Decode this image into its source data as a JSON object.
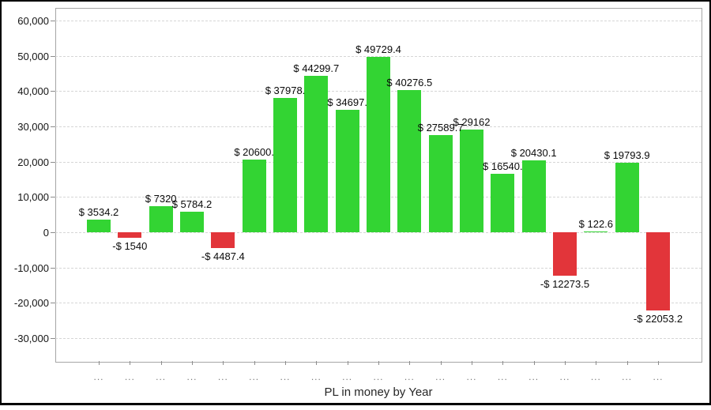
{
  "chart_data": {
    "type": "bar",
    "title": "",
    "xlabel": "PL in money by Year",
    "ylabel": "",
    "ylim": [
      -30000,
      60000
    ],
    "grid": true,
    "x_tick_label": "...",
    "y_ticks": [
      {
        "value": 60000,
        "label": "60,000"
      },
      {
        "value": 50000,
        "label": "50,000"
      },
      {
        "value": 40000,
        "label": "40,000"
      },
      {
        "value": 30000,
        "label": "30,000"
      },
      {
        "value": 20000,
        "label": "20,000"
      },
      {
        "value": 10000,
        "label": "10,000"
      },
      {
        "value": 0,
        "label": "0"
      },
      {
        "value": -10000,
        "label": "-10,000"
      },
      {
        "value": -20000,
        "label": "-20,000"
      },
      {
        "value": -30000,
        "label": "-30,000"
      }
    ],
    "bars": [
      {
        "label": "$ 3534.2",
        "value": 3534.2
      },
      {
        "label": "-$ 1540",
        "value": -1540
      },
      {
        "label": "$ 7320",
        "value": 7320
      },
      {
        "label": "$ 5784.2",
        "value": 5784.2
      },
      {
        "label": "-$ 4487.4",
        "value": -4487.4
      },
      {
        "label": "$ 20600.",
        "value": 20600
      },
      {
        "label": "$ 37978.",
        "value": 37978
      },
      {
        "label": "$ 44299.7",
        "value": 44299.7
      },
      {
        "label": "$ 34697.",
        "value": 34697
      },
      {
        "label": "$ 49729.4",
        "value": 49729.4
      },
      {
        "label": "$ 40276.5",
        "value": 40276.5
      },
      {
        "label": "$ 27589.7",
        "value": 27589.7
      },
      {
        "label": "$ 29162",
        "value": 29162
      },
      {
        "label": "$ 16540.",
        "value": 16540
      },
      {
        "label": "$ 20430.1",
        "value": 20430.1
      },
      {
        "label": "-$ 12273.5",
        "value": -12273.5
      },
      {
        "label": "$ 122.6",
        "value": 122.6
      },
      {
        "label": "$ 19793.9",
        "value": 19793.9
      },
      {
        "label": "-$ 22053.2",
        "value": -22053.2
      }
    ],
    "colors": {
      "positive": "#33d433",
      "negative": "#e2353a",
      "gridline": "#d6d6d6",
      "plot_border": "#a6a6a6",
      "tick": "#8c8c8c",
      "value_text": "#0a0a0a",
      "x_tick_text": "#7a7a7a",
      "axis_title_text": "#262626",
      "frame": "#000000"
    },
    "legend": null
  }
}
